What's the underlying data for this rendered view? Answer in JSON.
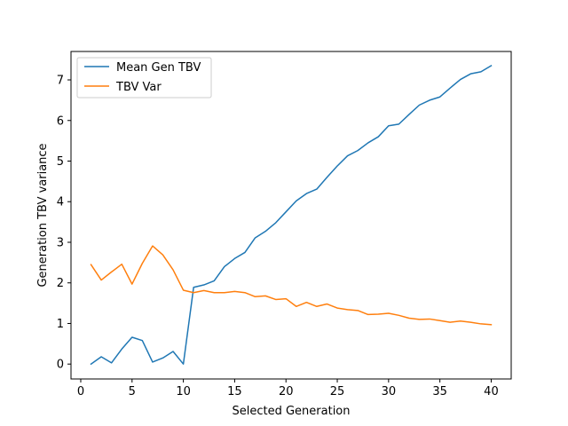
{
  "chart_data": {
    "type": "line",
    "xlabel": "Selected Generation",
    "ylabel": "Generation TBV variance",
    "xlim": [
      -0.95,
      41.95
    ],
    "ylim": [
      -0.367,
      7.7
    ],
    "x_ticks": [
      0,
      5,
      10,
      15,
      20,
      25,
      30,
      35,
      40
    ],
    "y_ticks": [
      0,
      1,
      2,
      3,
      4,
      5,
      6,
      7
    ],
    "grid": false,
    "legend_position": "upper-left",
    "x": [
      1,
      2,
      3,
      4,
      5,
      6,
      7,
      8,
      9,
      10,
      11,
      12,
      13,
      14,
      15,
      16,
      17,
      18,
      19,
      20,
      21,
      22,
      23,
      24,
      25,
      26,
      27,
      28,
      29,
      30,
      31,
      32,
      33,
      34,
      35,
      36,
      37,
      38,
      39,
      40
    ],
    "series": [
      {
        "name": "Mean Gen TBV",
        "color": "#1f77b4",
        "values": [
          0.0,
          0.18,
          0.03,
          0.37,
          0.66,
          0.58,
          0.05,
          0.15,
          0.31,
          0.0,
          1.89,
          1.95,
          2.05,
          2.4,
          2.6,
          2.75,
          3.11,
          3.27,
          3.48,
          3.75,
          4.02,
          4.2,
          4.31,
          4.6,
          4.88,
          5.13,
          5.26,
          5.45,
          5.6,
          5.87,
          5.91,
          6.15,
          6.38,
          6.5,
          6.58,
          6.8,
          7.01,
          7.15,
          7.2,
          7.35
        ]
      },
      {
        "name": "TBV Var",
        "color": "#ff7f0e",
        "values": [
          2.45,
          2.07,
          2.27,
          2.46,
          1.97,
          2.48,
          2.91,
          2.69,
          2.32,
          1.82,
          1.76,
          1.81,
          1.76,
          1.76,
          1.79,
          1.76,
          1.66,
          1.68,
          1.59,
          1.61,
          1.42,
          1.52,
          1.42,
          1.48,
          1.38,
          1.34,
          1.32,
          1.22,
          1.23,
          1.25,
          1.2,
          1.13,
          1.1,
          1.11,
          1.07,
          1.03,
          1.06,
          1.03,
          0.99,
          0.97
        ]
      }
    ]
  }
}
